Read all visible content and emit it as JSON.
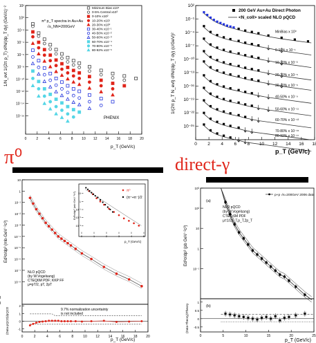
{
  "captions": {
    "left": "π⁰",
    "right": "direct-γ"
  },
  "colors": {
    "red": "#e0251a",
    "cyan": "#55d6e6",
    "blue": "#2233dd",
    "black": "#000000"
  },
  "chart_data": [
    {
      "type": "scatter",
      "title": "π⁰ p_T spectra in Au+Au",
      "subtitle": "√s_NN=200GeV",
      "xlabel": "p_T (GeV/c)",
      "ylabel": "1/N_evt 1/(2π p_T) d²N/(dp_T dy) (GeV/c)⁻²",
      "xlim": [
        0,
        20
      ],
      "ylog": true,
      "ylim": [
        "1e-17",
        "1e4"
      ],
      "xticks": [
        "0",
        "2",
        "4",
        "6",
        "8",
        "10",
        "12",
        "14",
        "16",
        "18",
        "20"
      ],
      "yticks": [
        "10²",
        "10⁰",
        "10⁻²",
        "10⁻⁴",
        "10⁻⁶",
        "10⁻⁸",
        "10⁻¹⁰",
        "10⁻¹²",
        "10⁻¹⁴",
        "10⁻¹⁶"
      ],
      "legend": [
        "Minimum Bias x10⁴",
        "0-5% Central x10³",
        "0-10% x10²",
        "10-20% x10¹",
        "20-30% x10⁰",
        "30-40% x10⁻¹",
        "40-50% x10⁻²",
        "50-60% x10⁻³",
        "60-70% x10⁻⁴",
        "70-80% x10⁻⁵",
        "80-92% x10⁻⁶"
      ],
      "legend_position": "top-right",
      "annotation": "PHENIX",
      "series": [
        {
          "name": "Minimum Bias x10⁴",
          "marker": "open-square",
          "x": [
            1.25,
            2.25,
            3.25,
            4.25,
            5.25,
            6.25,
            7.25,
            8.25,
            9.25,
            11,
            13,
            15,
            17,
            19
          ],
          "log10y": [
            1,
            -0.5,
            -1.5,
            -2.4,
            -3.2,
            -3.9,
            -4.5,
            -5,
            -5.4,
            -6,
            -6.6,
            -7.1,
            -7.5,
            -7.9
          ]
        },
        {
          "name": "0-5% Central x10³",
          "marker": "open-circle",
          "x": [
            1.25,
            2.25,
            3.25,
            4.25,
            5.25,
            6.25,
            7.25,
            8.25,
            9.25,
            11,
            13,
            15,
            17
          ],
          "log10y": [
            0.6,
            -1,
            -2.2,
            -3.1,
            -3.9,
            -4.6,
            -5.2,
            -5.7,
            -6.1,
            -6.7,
            -7.3,
            -7.8,
            -8.2
          ]
        },
        {
          "name": "0-10% x10²",
          "marker": "filled-square",
          "x": [
            1.25,
            2.25,
            3.25,
            4.25,
            5.25,
            6.25,
            7.25,
            8.25,
            9.25,
            11,
            13,
            15,
            17
          ],
          "log10y": [
            -0.3,
            -2,
            -3.2,
            -4.1,
            -4.9,
            -5.5,
            -6.1,
            -6.6,
            -7,
            -7.6,
            -8.2,
            -8.7,
            -9.1
          ]
        },
        {
          "name": "10-20% x10¹",
          "marker": "filled-circle",
          "x": [
            1.25,
            2.25,
            3.25,
            4.25,
            5.25,
            6.25,
            7.25,
            8.25,
            9.25,
            11,
            13,
            15
          ],
          "log10y": [
            -1.1,
            -2.9,
            -4.1,
            -5,
            -5.8,
            -6.4,
            -7,
            -7.5,
            -7.9,
            -8.5,
            -9.1,
            -9.6
          ]
        },
        {
          "name": "20-30% x10⁰",
          "marker": "filled-triangle",
          "x": [
            1.25,
            2.25,
            3.25,
            4.25,
            5.25,
            6.25,
            7.25,
            8.25,
            9.25,
            11,
            13,
            15
          ],
          "log10y": [
            -2.2,
            -3.9,
            -5.1,
            -6,
            -6.8,
            -7.4,
            -8,
            -8.5,
            -8.9,
            -9.5,
            -10.1,
            -10.6
          ]
        },
        {
          "name": "30-40% x10⁻¹",
          "marker": "open-square",
          "x": [
            1.25,
            2.25,
            3.25,
            4.25,
            5.25,
            6.25,
            7.25,
            8.25,
            9.25,
            11,
            13,
            15
          ],
          "log10y": [
            -3.3,
            -5,
            -6.2,
            -7.1,
            -7.9,
            -8.5,
            -9.1,
            -9.6,
            -10,
            -10.6,
            -11.2,
            -11.7
          ]
        },
        {
          "name": "40-50% x10⁻²",
          "marker": "open-circle",
          "x": [
            1.25,
            2.25,
            3.25,
            4.25,
            5.25,
            6.25,
            7.25,
            8.25,
            9.25,
            11,
            13
          ],
          "log10y": [
            -4.4,
            -6.1,
            -7.3,
            -8.2,
            -9,
            -9.6,
            -10.2,
            -10.7,
            -11.1,
            -11.7,
            -12.3
          ]
        },
        {
          "name": "50-60% x10⁻³",
          "marker": "open-triangle",
          "x": [
            1.25,
            2.25,
            3.25,
            4.25,
            5.25,
            6.25,
            7.25,
            8.25,
            9.25,
            11
          ],
          "log10y": [
            -5.5,
            -7.2,
            -8.4,
            -9.3,
            -10.1,
            -10.7,
            -11.3,
            -11.8,
            -12.2,
            -12.8
          ]
        },
        {
          "name": "60-70% x10⁻⁴",
          "marker": "filled-square",
          "x": [
            1.25,
            2.25,
            3.25,
            4.25,
            5.25,
            6.25,
            7.25,
            8.25,
            9.25
          ],
          "log10y": [
            -6.7,
            -8.4,
            -9.6,
            -10.5,
            -11.3,
            -11.9,
            -12.5,
            -13,
            -13.4
          ]
        },
        {
          "name": "70-80% x10⁻⁵",
          "marker": "filled-circle",
          "x": [
            1.25,
            2.25,
            3.25,
            4.25,
            5.25,
            6.25,
            7.25,
            8.25
          ],
          "log10y": [
            -7.9,
            -9.6,
            -10.8,
            -11.7,
            -12.5,
            -13.1,
            -13.7,
            -14.2
          ]
        },
        {
          "name": "80-92% x10⁻⁶",
          "marker": "filled-triangle",
          "x": [
            1.25,
            2.25,
            3.25,
            4.25,
            5.25,
            6.25,
            7.25
          ],
          "log10y": [
            -9.1,
            -10.8,
            -12,
            -12.9,
            -13.7,
            -14.3,
            -14.9
          ]
        }
      ]
    },
    {
      "type": "scatter",
      "xlabel": "p_T (GeV/c)",
      "ylabel": "1/(2π p_T N_evt) d²N/(dp_T dy) (c/GeV)²",
      "xlim": [
        0,
        18
      ],
      "ylog": true,
      "ylim": [
        "1e-27",
        "1e3"
      ],
      "xticks": [
        "0",
        "2",
        "4",
        "6",
        "8",
        "10",
        "12",
        "14",
        "16",
        "18"
      ],
      "yticks": [
        "10²",
        "10⁻¹",
        "10⁻⁴",
        "10⁻⁷",
        "10⁻¹⁰",
        "10⁻¹³",
        "10⁻¹⁶",
        "10⁻¹⁹",
        "10⁻²²",
        "10⁻²⁵"
      ],
      "legend": [
        "200 GeV Au+Au Direct Photon",
        "<N_coll> scaled NLO pQCD"
      ],
      "legend_position": "top-right",
      "curve_labels": [
        "MinBias x 10⁰",
        "0-10% x 10⁻¹",
        "10-20% x 10⁻³",
        "20-30% x 10⁻⁵",
        "30-40% x 10⁻⁶",
        "40-50% x 10⁻⁹",
        "50-60% x 10⁻¹¹",
        "60-70% x 10⁻¹³",
        "70-80% x 10⁻¹⁵",
        "80-92% x 10⁻¹⁷"
      ],
      "series": [
        {
          "name": "MinBias x 10⁰",
          "x": [
            1.25,
            1.75,
            2.25,
            2.75,
            3.25,
            3.75,
            4.25,
            4.75,
            5.25,
            5.75,
            6.5,
            7.5,
            8.5,
            9.5,
            11,
            13,
            15,
            17
          ],
          "log10y": [
            1.5,
            0.9,
            0.3,
            -0.2,
            -0.6,
            -0.9,
            -1.2,
            -1.5,
            -1.7,
            -1.9,
            -2.2,
            -2.6,
            -2.9,
            -3.2,
            -3.7,
            -4.2,
            -4.6,
            -5
          ]
        },
        {
          "name": "0-10% x 10⁻¹",
          "x": [
            1.25,
            2.25,
            3.25,
            4.25,
            5.25,
            6.5,
            7.5,
            8.5,
            9.5,
            11,
            13
          ],
          "log10y": [
            -1.6,
            -2.9,
            -3.6,
            -4.1,
            -4.5,
            -4.9,
            -5.3,
            -5.6,
            -5.9,
            -6.3,
            -6.9
          ]
        },
        {
          "name": "10-20% x 10⁻³",
          "x": [
            1.25,
            2.25,
            3.25,
            4.25,
            5.25,
            6.5,
            7.5,
            8.5,
            9.5,
            11,
            13
          ],
          "log10y": [
            -4.4,
            -5.7,
            -6.4,
            -6.9,
            -7.3,
            -7.7,
            -8.1,
            -8.4,
            -8.7,
            -9.1,
            -9.7
          ]
        },
        {
          "name": "20-30% x 10⁻⁵",
          "x": [
            1.25,
            2.25,
            3.25,
            4.25,
            5.25,
            6.5,
            7.5,
            8.5,
            9.5,
            11,
            13
          ],
          "log10y": [
            -7.2,
            -8.5,
            -9.2,
            -9.7,
            -10.1,
            -10.5,
            -10.9,
            -11.2,
            -11.5,
            -11.9,
            -12.5
          ]
        },
        {
          "name": "30-40% x 10⁻⁶",
          "x": [
            1.25,
            2.25,
            3.25,
            4.25,
            5.25,
            6.5,
            7.5,
            8.5,
            9.5,
            11,
            13
          ],
          "log10y": [
            -9.5,
            -10.8,
            -11.5,
            -12,
            -12.4,
            -12.8,
            -13.2,
            -13.5,
            -13.8,
            -14.2,
            -14.8
          ]
        },
        {
          "name": "40-50% x 10⁻⁹",
          "x": [
            1.25,
            2.25,
            3.25,
            4.25,
            5.25,
            6.5,
            7.5,
            8.5,
            9.5,
            11
          ],
          "log10y": [
            -12.6,
            -13.9,
            -14.6,
            -15.1,
            -15.5,
            -15.9,
            -16.3,
            -16.6,
            -16.9,
            -17.3
          ]
        },
        {
          "name": "50-60% x 10⁻¹¹",
          "x": [
            1.25,
            2.25,
            3.25,
            4.25,
            5.25,
            6.5,
            7.5,
            8.5,
            9.5,
            11
          ],
          "log10y": [
            -15.4,
            -16.7,
            -17.4,
            -17.9,
            -18.3,
            -18.7,
            -19.1,
            -19.4,
            -19.7,
            -20.1
          ]
        },
        {
          "name": "60-70% x 10⁻¹³",
          "x": [
            1.25,
            2.25,
            3.25,
            4.25,
            5.25,
            6.5,
            7.5,
            8.5,
            9.5
          ],
          "log10y": [
            -18.2,
            -19.5,
            -20.2,
            -20.7,
            -21.1,
            -21.5,
            -21.9,
            -22.2,
            -22.5
          ]
        },
        {
          "name": "70-80% x 10⁻¹⁵",
          "x": [
            1.25,
            2.25,
            3.25,
            4.25,
            5.25,
            6.5,
            7.5,
            8.5
          ],
          "log10y": [
            -21,
            -22.3,
            -23,
            -23.5,
            -23.9,
            -24.3,
            -24.7,
            -25
          ]
        },
        {
          "name": "80-92% x 10⁻¹⁷",
          "x": [
            1.25,
            2.25,
            3.25,
            4.25,
            5.25,
            6.5,
            7.5
          ],
          "log10y": [
            -23.6,
            -24.9,
            -25.6,
            -26.1,
            -26.5,
            -26.9,
            -27.3
          ]
        }
      ]
    },
    {
      "type": "scatter",
      "xlabel": "p_T (GeV/c)",
      "ylabel": "Ed³σ/dp³ (mb·GeV⁻²c³)",
      "ratio_ylabel": "(Data-pQCD)/pQCD",
      "xlim": [
        0,
        20
      ],
      "ylog": true,
      "ylim": [
        "1e-9",
        "1e2"
      ],
      "xticks": [
        "0",
        "2",
        "4",
        "6",
        "8",
        "10",
        "12",
        "14",
        "16",
        "18",
        "20"
      ],
      "yticks": [
        "10",
        "1",
        "10⁻¹",
        "10⁻²",
        "10⁻³",
        "10⁻⁴",
        "10⁻⁵",
        "10⁻⁶",
        "10⁻⁷",
        "10⁻⁸"
      ],
      "ratio_yticks": [
        "2",
        "1",
        "0",
        "-1"
      ],
      "annotation": "NLO pQCD\n(by W.Vogelsang)\nCTEQ6M PDF; KKP FF\nμ=pT/2, pT, 2pT",
      "ratio_annotation": "9.7% normalization uncertainty\nis not included",
      "inset": {
        "xlabel": "p_T (GeV/c)",
        "ylabel": "Ed³σ/dp³ (mb·GeV⁻²c³)",
        "xticks": [
          "0",
          "1",
          "2",
          "3",
          "4",
          "5"
        ],
        "yticks": [
          "10",
          "1",
          "10⁻¹",
          "10⁻²",
          "10⁻³"
        ],
        "legend": [
          "π⁰",
          "(π⁺+π⁻)/2"
        ],
        "series": [
          {
            "name": "π⁰",
            "x": [
              0.6,
              0.9,
              1.2,
              1.5,
              1.8,
              2.2,
              2.6,
              3,
              3.4,
              3.8,
              4.2,
              4.6
            ],
            "log10y": [
              1.3,
              0.9,
              0.4,
              0,
              -0.4,
              -0.9,
              -1.3,
              -1.7,
              -2.1,
              -2.4,
              -2.7,
              -3
            ]
          },
          {
            "name": "(π⁺+π⁻)/2",
            "x": [
              0.35,
              0.5,
              0.65,
              0.8,
              0.95,
              1.1,
              1.3,
              1.5,
              1.7,
              1.9,
              2.1,
              2.3,
              2.5
            ],
            "log10y": [
              1.7,
              1.5,
              1.3,
              1.1,
              0.9,
              0.7,
              0.5,
              0.2,
              -0.1,
              -0.4,
              -0.7,
              -1,
              -1.3
            ]
          }
        ]
      },
      "series": [
        {
          "name": "π⁰",
          "x": [
            1.25,
            1.75,
            2.25,
            2.75,
            3.25,
            3.75,
            4.25,
            4.75,
            5.25,
            5.75,
            6.25,
            6.75,
            7.25,
            7.75,
            8.5,
            9.5,
            11,
            13,
            15,
            17,
            19
          ],
          "log10y": [
            0.4,
            -0.1,
            -0.6,
            -1,
            -1.4,
            -1.8,
            -2.1,
            -2.4,
            -2.7,
            -3,
            -3.2,
            -3.4,
            -3.6,
            -3.8,
            -4.1,
            -4.5,
            -5,
            -5.7,
            -6.3,
            -6.8,
            -7.4
          ]
        }
      ],
      "ratio": {
        "x": [
          1.25,
          1.75,
          2.25,
          2.75,
          3.25,
          3.75,
          4.25,
          4.75,
          5.25,
          5.75,
          6.25,
          6.75,
          7.25,
          7.75,
          8.5,
          9.5,
          11,
          13,
          15,
          17,
          19
        ],
        "y": [
          -0.55,
          -0.35,
          -0.2,
          -0.1,
          -0.05,
          0,
          0.05,
          0.05,
          0.05,
          0.05,
          0,
          0,
          0,
          0,
          0,
          -0.05,
          0,
          0.05,
          -0.1,
          -0.05,
          0
        ]
      }
    },
    {
      "type": "scatter",
      "xlabel": "p_T (GeV/c)",
      "ylabel": "Ed³σ/dp³ (pb GeV⁻²c³)",
      "ratio_ylabel": "(Data-Theory)/Theory",
      "xlim": [
        0,
        25
      ],
      "ylog": true,
      "ylim": [
        "1e-2",
        "1e4"
      ],
      "xticks": [
        "0",
        "5",
        "10",
        "15",
        "20",
        "25"
      ],
      "yticks": [
        "10³",
        "10²",
        "10",
        "1",
        "10⁻¹"
      ],
      "ratio_yticks": [
        "1",
        "0.5",
        "0",
        "-0.5"
      ],
      "legend": [
        "p+p √s=200GeV 2006 data"
      ],
      "panel_label": "(a)",
      "ratio_panel_label": "(b)",
      "annotation": "NLO pQCD\n(by W.Vogelsang)\nCTEQ 6M PDF\nμ=1/2p_T,p_T,2p_T",
      "series": [
        {
          "name": "p+p √s=200GeV 2006 data",
          "x": [
            5.5,
            6.5,
            7.5,
            8.5,
            9.5,
            10.5,
            11.5,
            12.5,
            13.5,
            14.5,
            15.5,
            16.5,
            17.5,
            18.5,
            19.5,
            21,
            23
          ],
          "log10y": [
            3.3,
            2.7,
            2.2,
            1.8,
            1.5,
            1.2,
            0.9,
            0.7,
            0.5,
            0.3,
            0.1,
            -0.1,
            -0.3,
            -0.4,
            -0.6,
            -0.9,
            -1.3
          ]
        }
      ],
      "ratio": {
        "x": [
          5.5,
          6.5,
          7.5,
          8.5,
          9.5,
          10.5,
          11.5,
          12.5,
          13.5,
          14.5,
          15.5,
          16.5,
          17.5,
          18.5,
          19.5,
          21,
          23
        ],
        "y": [
          0.3,
          0.25,
          0.2,
          0.15,
          0.1,
          0.05,
          0,
          -0.05,
          0.05,
          0.1,
          0,
          0.15,
          -0.1,
          0.05,
          0.1,
          0.2,
          0.3
        ]
      }
    }
  ]
}
